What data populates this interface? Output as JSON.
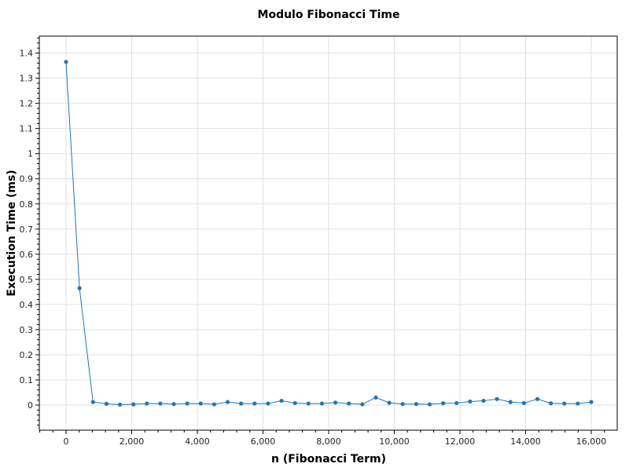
{
  "chart_data": {
    "type": "line",
    "title": "Modulo Fibonacci Time",
    "xlabel": "n (Fibonacci Term)",
    "ylabel": "Execution Time (ms)",
    "xlim": [
      -900,
      16800
    ],
    "ylim": [
      -0.1,
      1.465
    ],
    "xticks": [
      0,
      2000,
      4000,
      6000,
      8000,
      10000,
      12000,
      14000,
      16000
    ],
    "xtick_labels": [
      "0",
      "2,000",
      "4,000",
      "6,000",
      "8,000",
      "10,000",
      "12,000",
      "14,000",
      "16,000"
    ],
    "yticks": [
      0,
      0.1,
      0.2,
      0.3,
      0.4,
      0.5,
      0.6,
      0.7,
      0.8,
      0.9,
      1,
      1.1,
      1.2,
      1.3,
      1.4
    ],
    "ytick_labels": [
      "0",
      "0.1",
      "0.2",
      "0.3",
      "0.4",
      "0.5",
      "0.6",
      "0.7",
      "0.8",
      "0.9",
      "1",
      "1.1",
      "1.2",
      "1.3",
      "1.4"
    ],
    "grid": true,
    "series": [
      {
        "color": "#1f77b4",
        "x": [
          0,
          410,
          821,
          1231,
          1641,
          2051,
          2462,
          2872,
          3282,
          3692,
          4103,
          4513,
          4923,
          5333,
          5744,
          6154,
          6564,
          6974,
          7385,
          7795,
          8205,
          8615,
          9026,
          9436,
          9846,
          10256,
          10667,
          11077,
          11487,
          11897,
          12308,
          12718,
          13128,
          13538,
          13949,
          14359,
          14769,
          15179,
          15590,
          16000
        ],
        "y": [
          1.365,
          0.465,
          0.012,
          0.005,
          0.002,
          0.003,
          0.006,
          0.006,
          0.004,
          0.006,
          0.006,
          0.003,
          0.012,
          0.006,
          0.006,
          0.006,
          0.017,
          0.008,
          0.006,
          0.006,
          0.01,
          0.006,
          0.003,
          0.03,
          0.009,
          0.004,
          0.004,
          0.003,
          0.007,
          0.008,
          0.014,
          0.017,
          0.024,
          0.012,
          0.008,
          0.024,
          0.007,
          0.006,
          0.006,
          0.012
        ]
      }
    ]
  }
}
